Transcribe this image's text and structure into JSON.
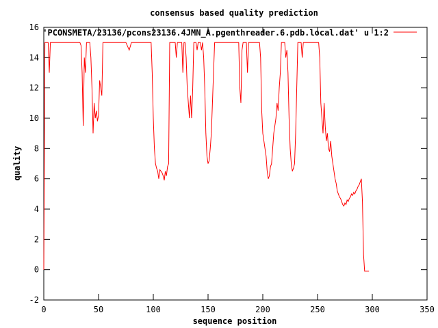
{
  "chart_data": {
    "type": "line",
    "title": "consensus based quality prediction",
    "xlabel": "sequence position",
    "ylabel": "quality",
    "xlim": [
      0,
      350
    ],
    "ylim": [
      -2,
      16
    ],
    "x_ticks": [
      0,
      50,
      100,
      150,
      200,
      250,
      300,
      350
    ],
    "y_ticks": [
      -2,
      0,
      2,
      4,
      6,
      8,
      10,
      12,
      14,
      16
    ],
    "grid": false,
    "legend_position": "top-right",
    "series": [
      {
        "name": "'PCONSMETA/23136/pcons23136.4JMN_A.pgenthreader.6.pdb.local.dat' u 1:2",
        "color": "#ff0000",
        "points": [
          [
            0,
            0
          ],
          [
            1,
            15
          ],
          [
            2,
            15
          ],
          [
            3,
            15
          ],
          [
            4,
            15
          ],
          [
            5,
            13
          ],
          [
            6,
            15
          ],
          [
            7,
            15
          ],
          [
            10,
            15
          ],
          [
            15,
            15
          ],
          [
            20,
            15
          ],
          [
            25,
            15
          ],
          [
            30,
            15
          ],
          [
            33,
            15
          ],
          [
            34,
            14.8
          ],
          [
            35,
            13
          ],
          [
            36,
            9.5
          ],
          [
            37,
            14
          ],
          [
            38,
            13
          ],
          [
            39,
            15
          ],
          [
            40,
            15
          ],
          [
            41,
            15
          ],
          [
            42,
            15
          ],
          [
            43,
            14
          ],
          [
            44,
            12
          ],
          [
            45,
            9
          ],
          [
            46,
            11
          ],
          [
            47,
            10
          ],
          [
            48,
            10.5
          ],
          [
            49,
            9.8
          ],
          [
            50,
            10.2
          ],
          [
            51,
            12.5
          ],
          [
            52,
            12
          ],
          [
            53,
            11.5
          ],
          [
            54,
            15
          ],
          [
            55,
            15
          ],
          [
            60,
            15
          ],
          [
            65,
            15
          ],
          [
            70,
            15
          ],
          [
            75,
            15
          ],
          [
            78,
            14.5
          ],
          [
            80,
            15
          ],
          [
            85,
            15
          ],
          [
            90,
            15
          ],
          [
            95,
            15
          ],
          [
            98,
            15
          ],
          [
            99,
            13
          ],
          [
            100,
            10
          ],
          [
            101,
            8
          ],
          [
            102,
            7
          ],
          [
            103,
            6.7
          ],
          [
            104,
            6.5
          ],
          [
            105,
            6
          ],
          [
            106,
            6.6
          ],
          [
            107,
            6.5
          ],
          [
            108,
            6.4
          ],
          [
            109,
            6.2
          ],
          [
            110,
            5.9
          ],
          [
            111,
            6.5
          ],
          [
            112,
            6.2
          ],
          [
            113,
            6.8
          ],
          [
            114,
            7
          ],
          [
            115,
            15
          ],
          [
            116,
            15
          ],
          [
            117,
            15
          ],
          [
            118,
            15
          ],
          [
            119,
            15
          ],
          [
            120,
            15
          ],
          [
            121,
            14
          ],
          [
            122,
            15
          ],
          [
            123,
            15
          ],
          [
            124,
            15
          ],
          [
            125,
            15
          ],
          [
            126,
            15
          ],
          [
            127,
            13
          ],
          [
            128,
            15
          ],
          [
            129,
            15
          ],
          [
            130,
            14
          ],
          [
            131,
            12
          ],
          [
            132,
            11
          ],
          [
            133,
            10
          ],
          [
            134,
            11.5
          ],
          [
            135,
            10
          ],
          [
            136,
            12
          ],
          [
            137,
            15
          ],
          [
            138,
            15
          ],
          [
            139,
            15
          ],
          [
            140,
            14.5
          ],
          [
            141,
            15
          ],
          [
            142,
            15
          ],
          [
            143,
            15
          ],
          [
            144,
            14.5
          ],
          [
            145,
            15
          ],
          [
            146,
            14
          ],
          [
            147,
            12
          ],
          [
            148,
            9
          ],
          [
            149,
            7.5
          ],
          [
            150,
            7
          ],
          [
            151,
            7.2
          ],
          [
            152,
            8
          ],
          [
            153,
            9
          ],
          [
            154,
            11
          ],
          [
            155,
            13
          ],
          [
            156,
            15
          ],
          [
            157,
            15
          ],
          [
            160,
            15
          ],
          [
            165,
            15
          ],
          [
            170,
            15
          ],
          [
            175,
            15
          ],
          [
            178,
            15
          ],
          [
            179,
            12
          ],
          [
            180,
            11
          ],
          [
            181,
            14.5
          ],
          [
            182,
            15
          ],
          [
            183,
            15
          ],
          [
            184,
            15
          ],
          [
            185,
            15
          ],
          [
            186,
            13
          ],
          [
            187,
            15
          ],
          [
            188,
            15
          ],
          [
            189,
            15
          ],
          [
            190,
            15
          ],
          [
            191,
            15
          ],
          [
            192,
            15
          ],
          [
            193,
            15
          ],
          [
            194,
            15
          ],
          [
            195,
            15
          ],
          [
            196,
            15
          ],
          [
            197,
            15
          ],
          [
            198,
            14
          ],
          [
            199,
            10.5
          ],
          [
            200,
            9
          ],
          [
            201,
            8.5
          ],
          [
            202,
            8
          ],
          [
            203,
            7.5
          ],
          [
            204,
            6.5
          ],
          [
            205,
            6
          ],
          [
            206,
            6.2
          ],
          [
            207,
            6.8
          ],
          [
            208,
            7
          ],
          [
            209,
            8
          ],
          [
            210,
            9
          ],
          [
            211,
            9.5
          ],
          [
            212,
            10
          ],
          [
            213,
            11
          ],
          [
            214,
            10.5
          ],
          [
            215,
            12
          ],
          [
            216,
            13
          ],
          [
            217,
            15
          ],
          [
            218,
            15
          ],
          [
            219,
            15
          ],
          [
            220,
            15
          ],
          [
            221,
            14
          ],
          [
            222,
            14.5
          ],
          [
            223,
            13
          ],
          [
            224,
            10
          ],
          [
            225,
            8
          ],
          [
            226,
            7
          ],
          [
            227,
            6.5
          ],
          [
            228,
            6.7
          ],
          [
            229,
            7
          ],
          [
            230,
            9
          ],
          [
            231,
            12
          ],
          [
            232,
            15
          ],
          [
            233,
            15
          ],
          [
            234,
            15
          ],
          [
            235,
            15
          ],
          [
            236,
            14
          ],
          [
            237,
            15
          ],
          [
            238,
            15
          ],
          [
            239,
            15
          ],
          [
            240,
            15
          ],
          [
            241,
            15
          ],
          [
            242,
            15
          ],
          [
            243,
            15
          ],
          [
            244,
            15
          ],
          [
            245,
            15
          ],
          [
            246,
            15
          ],
          [
            247,
            15
          ],
          [
            248,
            15
          ],
          [
            249,
            15
          ],
          [
            250,
            15
          ],
          [
            251,
            15
          ],
          [
            252,
            14
          ],
          [
            253,
            11
          ],
          [
            254,
            10
          ],
          [
            255,
            9
          ],
          [
            256,
            11
          ],
          [
            257,
            9.5
          ],
          [
            258,
            8.5
          ],
          [
            259,
            9
          ],
          [
            260,
            8
          ],
          [
            261,
            7.8
          ],
          [
            262,
            8.5
          ],
          [
            263,
            7.5
          ],
          [
            264,
            7
          ],
          [
            265,
            6.5
          ],
          [
            266,
            6
          ],
          [
            267,
            5.7
          ],
          [
            268,
            5.2
          ],
          [
            269,
            5
          ],
          [
            270,
            4.8
          ],
          [
            271,
            4.7
          ],
          [
            272,
            4.5
          ],
          [
            273,
            4.3
          ],
          [
            274,
            4.2
          ],
          [
            275,
            4.4
          ],
          [
            276,
            4.3
          ],
          [
            277,
            4.6
          ],
          [
            278,
            4.5
          ],
          [
            279,
            4.7
          ],
          [
            280,
            4.8
          ],
          [
            281,
            5
          ],
          [
            282,
            4.9
          ],
          [
            283,
            5.1
          ],
          [
            284,
            5
          ],
          [
            285,
            5.2
          ],
          [
            286,
            5.3
          ],
          [
            287,
            5.5
          ],
          [
            288,
            5.6
          ],
          [
            289,
            5.8
          ],
          [
            290,
            6
          ],
          [
            291,
            4.5
          ],
          [
            292,
            1
          ],
          [
            293,
            -0.1
          ],
          [
            294,
            -0.1
          ],
          [
            295,
            -0.1
          ],
          [
            296,
            -0.1
          ],
          [
            297,
            -0.1
          ]
        ]
      }
    ]
  }
}
